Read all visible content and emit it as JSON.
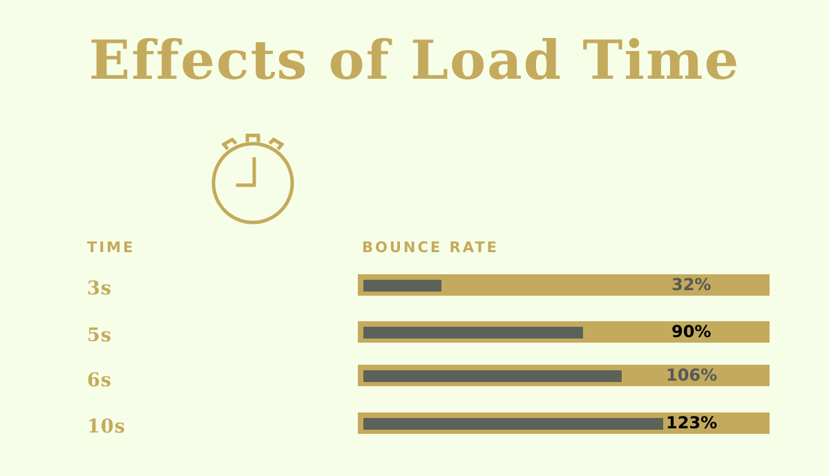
{
  "title": "Effects of Load Time",
  "headers": {
    "time": "TIME",
    "bounce_rate": "BOUNCE RATE"
  },
  "colors": {
    "background": "#f7fee8",
    "gold": "#c4aa5c",
    "fill": "#5b6259"
  },
  "icon": "stopwatch-icon",
  "chart_data": {
    "type": "bar",
    "title": "Effects of Load Time",
    "xlabel": "TIME",
    "ylabel": "BOUNCE RATE",
    "categories": [
      "3s",
      "5s",
      "6s",
      "10s"
    ],
    "values": [
      32,
      90,
      106,
      123
    ],
    "value_labels": [
      "32%",
      "90%",
      "106%",
      "123%"
    ],
    "value_label_colors": [
      "#555a56",
      "#000000",
      "#555a56",
      "#000000"
    ],
    "unit": "%",
    "orientation": "horizontal"
  }
}
